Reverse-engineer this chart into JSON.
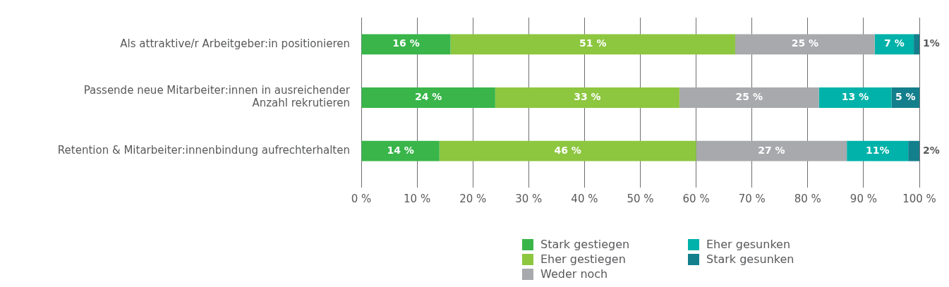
{
  "chart_data": {
    "type": "bar",
    "orientation": "horizontal",
    "stacked": true,
    "categories": [
      "Als attraktive/r Arbeitgeber:in positionieren",
      "Passende neue Mitarbeiter:innen in ausreichender Anzahl rekrutieren",
      "Retention & Mitarbeiter:innenbindung aufrechterhalten"
    ],
    "series": [
      {
        "name": "Stark gestiegen",
        "color": "#39b54a",
        "values": [
          16,
          24,
          14
        ],
        "value_labels": [
          "16 %",
          "24 %",
          "14 %"
        ]
      },
      {
        "name": "Eher gestiegen",
        "color": "#8dc63f",
        "values": [
          51,
          33,
          46
        ],
        "value_labels": [
          "51 %",
          "33 %",
          "46 %"
        ]
      },
      {
        "name": "Weder noch",
        "color": "#a7a9ac",
        "values": [
          25,
          25,
          27
        ],
        "value_labels": [
          "25 %",
          "25 %",
          "27 %"
        ]
      },
      {
        "name": "Eher gesunken",
        "color": "#00b2a9",
        "values": [
          7,
          13,
          11
        ],
        "value_labels": [
          "7 %",
          "13 %",
          "11%"
        ]
      },
      {
        "name": "Stark gesunken",
        "color": "#137f8c",
        "values": [
          1,
          5,
          2
        ],
        "value_labels": [
          "1%",
          "5 %",
          "2%"
        ]
      }
    ],
    "xlim": [
      0,
      100
    ],
    "xticks": [
      {
        "value": 0,
        "label": "0 %"
      },
      {
        "value": 10,
        "label": "10 %"
      },
      {
        "value": 20,
        "label": "20 %"
      },
      {
        "value": 30,
        "label": "30 %"
      },
      {
        "value": 40,
        "label": "40 %"
      },
      {
        "value": 50,
        "label": "50 %"
      },
      {
        "value": 60,
        "label": "60 %"
      },
      {
        "value": 70,
        "label": "70 %"
      },
      {
        "value": 80,
        "label": "80 %"
      },
      {
        "value": 90,
        "label": "90 %"
      },
      {
        "value": 100,
        "label": "100 %"
      }
    ],
    "grid": "x",
    "legend": "bottom"
  }
}
